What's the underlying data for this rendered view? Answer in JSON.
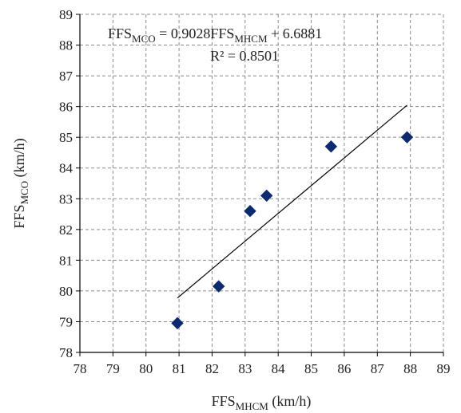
{
  "chart_data": {
    "type": "scatter",
    "x": [
      80.95,
      82.2,
      83.15,
      83.65,
      85.6,
      87.9
    ],
    "y": [
      78.95,
      80.15,
      82.6,
      83.1,
      84.7,
      85.0
    ],
    "xlim": [
      78,
      89
    ],
    "ylim": [
      78,
      89
    ],
    "xticks": [
      "78",
      "79",
      "80",
      "81",
      "82",
      "83",
      "84",
      "85",
      "86",
      "87",
      "88",
      "89"
    ],
    "yticks": [
      "78",
      "79",
      "80",
      "81",
      "82",
      "83",
      "84",
      "85",
      "86",
      "87",
      "88",
      "89"
    ],
    "xlabel": {
      "main": "FFS",
      "sub": "MHCM",
      "unit": " (km/h)"
    },
    "ylabel": {
      "main": "FFS",
      "sub": "MCO",
      "unit": " (km/h)"
    },
    "trendline": {
      "slope": 0.9028,
      "intercept": 6.6881,
      "x_range": [
        80.95,
        87.9
      ]
    },
    "equation": {
      "lhs_main": "FFS",
      "lhs_sub": "MCO",
      "mid": " = 0.9028FFS",
      "rhs_sub": "MHCM",
      "tail": "  + 6.6881"
    },
    "r_squared": "R² = 0.8501",
    "grid": true,
    "marker_color": "#0d2a6e",
    "line_color": "#000000"
  }
}
